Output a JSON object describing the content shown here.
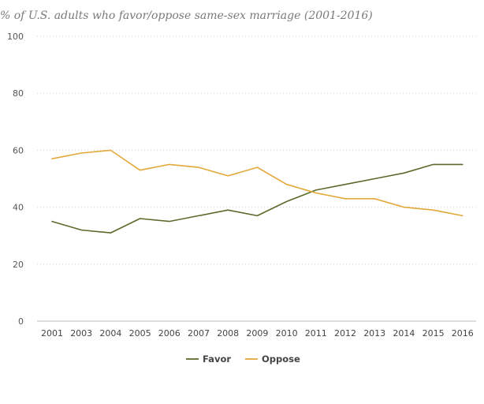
{
  "chart_data": {
    "type": "line",
    "title": "% of U.S. adults who favor/oppose same-sex marriage (2001-2016)",
    "xlabel": "",
    "ylabel": "",
    "ylim": [
      0,
      100
    ],
    "y_ticks": [
      "0",
      "20",
      "40",
      "60",
      "80",
      "100"
    ],
    "categories": [
      "2001",
      "2003",
      "2004",
      "2005",
      "2006",
      "2007",
      "2008",
      "2009",
      "2010",
      "2011",
      "2012",
      "2013",
      "2014",
      "2015",
      "2016"
    ],
    "series": [
      {
        "name": "Favor",
        "color": "#5b6a2a",
        "values": [
          35,
          32,
          31,
          36,
          35,
          37,
          39,
          37,
          42,
          46,
          48,
          50,
          52,
          55,
          55
        ]
      },
      {
        "name": "Oppose",
        "color": "#e3a73a",
        "values": [
          57,
          59,
          60,
          53,
          55,
          54,
          51,
          54,
          48,
          45,
          43,
          43,
          40,
          39,
          37
        ]
      }
    ],
    "grid": true,
    "legend_position": "bottom-center"
  }
}
